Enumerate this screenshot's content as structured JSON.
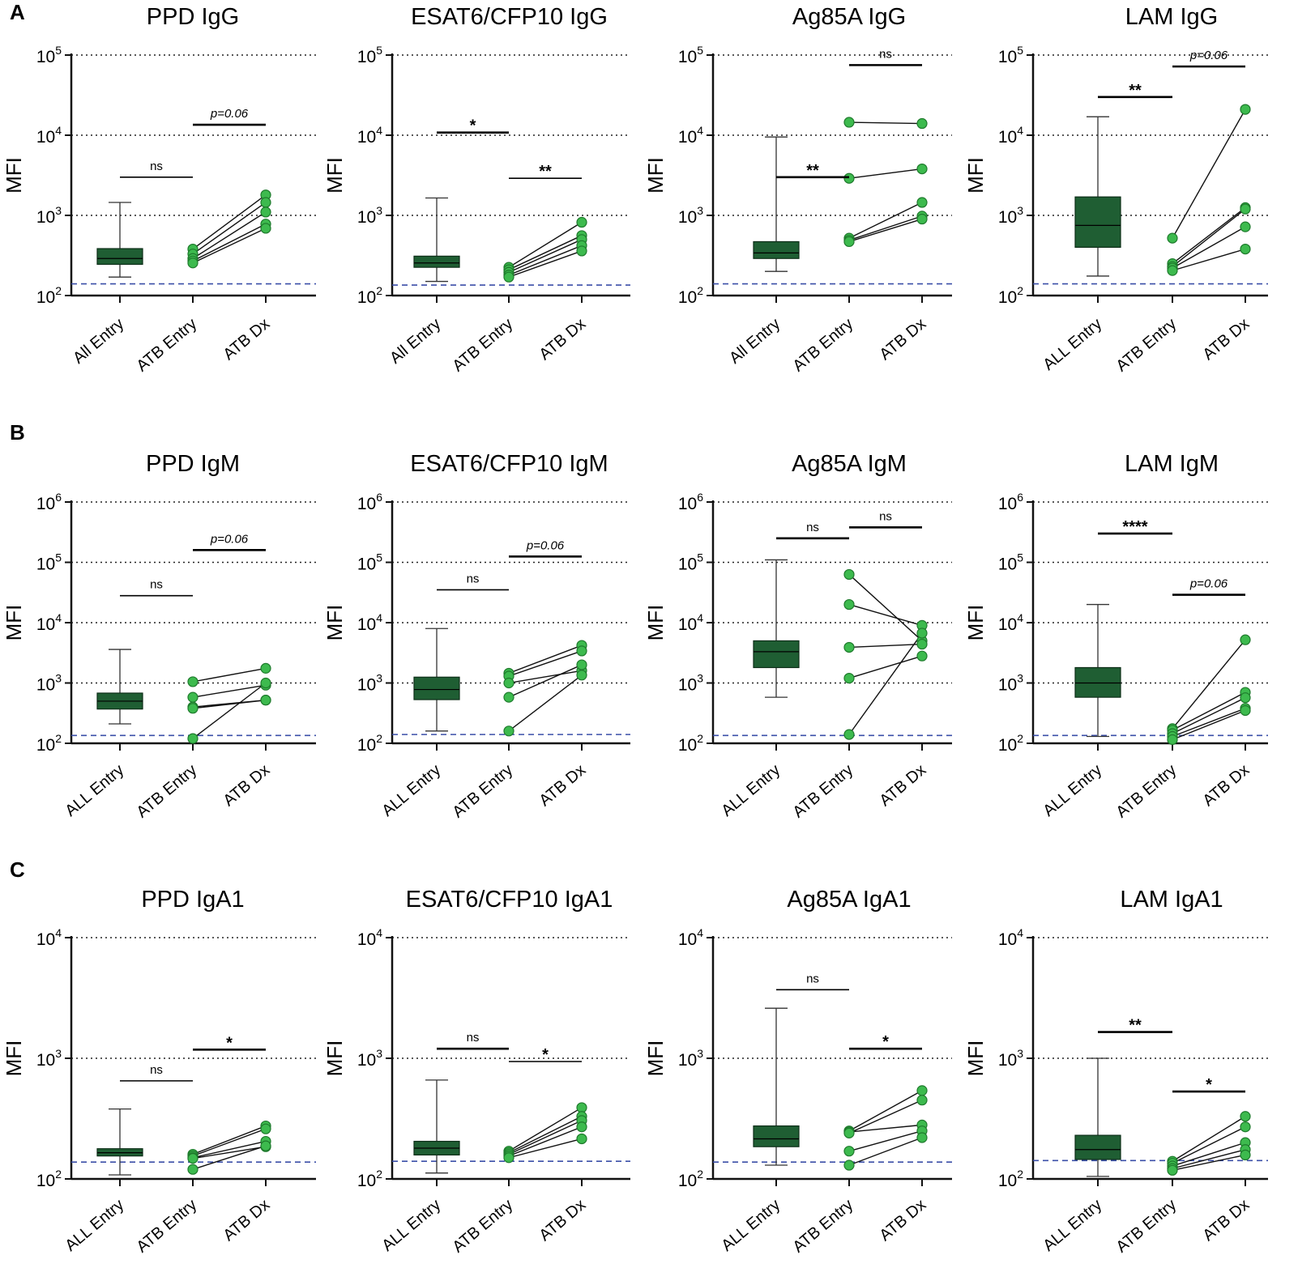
{
  "colors": {
    "box_fill": "#1f5e33",
    "point_fill": "#3dba4e",
    "point_stroke": "#1e7a2c",
    "threshold": "#3b4fa8",
    "axis": "#111111",
    "grid": "#222222"
  },
  "figure": {
    "panel_labels": [
      "A",
      "B",
      "C"
    ],
    "ylabel": "MFI"
  },
  "chart_data": [
    {
      "type": "box-paired",
      "panel": "A",
      "title": "PPD IgG",
      "ylabel": "MFI",
      "ylim_log10": [
        2,
        5
      ],
      "categories": [
        "All Entry",
        "ATB Entry",
        "ATB Dx"
      ],
      "box": {
        "min": 170,
        "q1": 245,
        "median": 290,
        "q3": 385,
        "max": 1450
      },
      "pairs": [
        [
          380,
          1800
        ],
        [
          330,
          1450
        ],
        [
          290,
          1100
        ],
        [
          270,
          780
        ],
        [
          255,
          690
        ]
      ],
      "threshold": 140,
      "comparisons": [
        {
          "label": "ns",
          "from": 0,
          "to": 1,
          "y": 3000,
          "bold": false,
          "italic": false
        },
        {
          "label": "p=0.06",
          "from": 1,
          "to": 2,
          "y": 13500,
          "bold": true,
          "italic": true
        }
      ]
    },
    {
      "type": "box-paired",
      "panel": "A",
      "title": "ESAT6/CFP10 IgG",
      "ylabel": "MFI",
      "ylim_log10": [
        2,
        5
      ],
      "categories": [
        "All Entry",
        "ATB Entry",
        "ATB Dx"
      ],
      "box": {
        "min": 150,
        "q1": 225,
        "median": 255,
        "q3": 310,
        "max": 1650
      },
      "pairs": [
        [
          225,
          820
        ],
        [
          210,
          560
        ],
        [
          195,
          500
        ],
        [
          180,
          420
        ],
        [
          170,
          360
        ]
      ],
      "threshold": 135,
      "comparisons": [
        {
          "label": "*",
          "from": 0,
          "to": 1,
          "y": 10800,
          "bold": true,
          "italic": false
        },
        {
          "label": "**",
          "from": 1,
          "to": 2,
          "y": 2900,
          "bold": false,
          "italic": false
        }
      ]
    },
    {
      "type": "box-paired",
      "panel": "A",
      "title": "Ag85A IgG",
      "ylabel": "MFI",
      "ylim_log10": [
        2,
        5
      ],
      "categories": [
        "All Entry",
        "ATB Entry",
        "ATB Dx"
      ],
      "box": {
        "min": 200,
        "q1": 290,
        "median": 340,
        "q3": 470,
        "max": 9500
      },
      "pairs": [
        [
          14500,
          14000
        ],
        [
          2900,
          3800
        ],
        [
          520,
          1450
        ],
        [
          490,
          980
        ],
        [
          470,
          900
        ]
      ],
      "threshold": 140,
      "comparisons": [
        {
          "label": "**",
          "from": 0,
          "to": 1,
          "y": 3000,
          "bold": true,
          "italic": false
        },
        {
          "label": "ns",
          "from": 1,
          "to": 2,
          "y": 75000,
          "bold": true,
          "italic": false
        }
      ]
    },
    {
      "type": "box-paired",
      "panel": "A",
      "title": "LAM IgG",
      "ylabel": "MFI",
      "ylim_log10": [
        2,
        5
      ],
      "categories": [
        "ALL Entry",
        "ATB Entry",
        "ATB Dx"
      ],
      "box": {
        "min": 175,
        "q1": 400,
        "median": 750,
        "q3": 1700,
        "max": 17000
      },
      "pairs": [
        [
          520,
          21000
        ],
        [
          250,
          1250
        ],
        [
          230,
          1200
        ],
        [
          220,
          720
        ],
        [
          205,
          380
        ]
      ],
      "threshold": 140,
      "comparisons": [
        {
          "label": "**",
          "from": 0,
          "to": 1,
          "y": 30000,
          "bold": true,
          "italic": false
        },
        {
          "label": "p=0.06",
          "from": 1,
          "to": 2,
          "y": 72000,
          "bold": true,
          "italic": true
        }
      ]
    },
    {
      "type": "box-paired",
      "panel": "B",
      "title": "PPD IgM",
      "ylabel": "MFI",
      "ylim_log10": [
        2,
        6
      ],
      "categories": [
        "ALL Entry",
        "ATB Entry",
        "ATB Dx"
      ],
      "box": {
        "min": 210,
        "q1": 370,
        "median": 500,
        "q3": 680,
        "max": 3600
      },
      "pairs": [
        [
          1050,
          1750
        ],
        [
          580,
          920
        ],
        [
          400,
          520
        ],
        [
          380,
          520
        ],
        [
          120,
          1000
        ]
      ],
      "threshold": 135,
      "comparisons": [
        {
          "label": "ns",
          "from": 0,
          "to": 1,
          "y": 28000,
          "bold": false,
          "italic": false
        },
        {
          "label": "p=0.06",
          "from": 1,
          "to": 2,
          "y": 160000,
          "bold": true,
          "italic": true
        }
      ]
    },
    {
      "type": "box-paired",
      "panel": "B",
      "title": "ESAT6/CFP10 IgM",
      "ylabel": "MFI",
      "ylim_log10": [
        2,
        6
      ],
      "categories": [
        "ALL Entry",
        "ATB Entry",
        "ATB Dx"
      ],
      "box": {
        "min": 160,
        "q1": 530,
        "median": 780,
        "q3": 1250,
        "max": 8000
      },
      "pairs": [
        [
          1450,
          4200
        ],
        [
          1300,
          3400
        ],
        [
          1000,
          1600
        ],
        [
          580,
          2000
        ],
        [
          160,
          1350
        ]
      ],
      "threshold": 140,
      "comparisons": [
        {
          "label": "ns",
          "from": 0,
          "to": 1,
          "y": 35000,
          "bold": false,
          "italic": false
        },
        {
          "label": "p=0.06",
          "from": 1,
          "to": 2,
          "y": 125000,
          "bold": true,
          "italic": true
        }
      ]
    },
    {
      "type": "box-paired",
      "panel": "B",
      "title": "Ag85A IgM",
      "ylabel": "MFI",
      "ylim_log10": [
        2,
        6
      ],
      "categories": [
        "ALL Entry",
        "ATB Entry",
        "ATB Dx"
      ],
      "box": {
        "min": 580,
        "q1": 1800,
        "median": 3300,
        "q3": 5000,
        "max": 110000
      },
      "pairs": [
        [
          63000,
          5000
        ],
        [
          20000,
          9000
        ],
        [
          3900,
          4400
        ],
        [
          1200,
          2800
        ],
        [
          140,
          6700
        ]
      ],
      "threshold": 135,
      "comparisons": [
        {
          "label": "ns",
          "from": 0,
          "to": 1,
          "y": 250000,
          "bold": true,
          "italic": false
        },
        {
          "label": "ns",
          "from": 1,
          "to": 2,
          "y": 380000,
          "bold": true,
          "italic": false
        }
      ]
    },
    {
      "type": "box-paired",
      "panel": "B",
      "title": "LAM IgM",
      "ylabel": "MFI",
      "ylim_log10": [
        2,
        6
      ],
      "categories": [
        "ALL Entry",
        "ATB Entry",
        "ATB Dx"
      ],
      "box": {
        "min": 130,
        "q1": 580,
        "median": 1000,
        "q3": 1800,
        "max": 20000
      },
      "pairs": [
        [
          175,
          5200
        ],
        [
          165,
          700
        ],
        [
          145,
          570
        ],
        [
          130,
          380
        ],
        [
          115,
          350
        ]
      ],
      "threshold": 135,
      "comparisons": [
        {
          "label": "****",
          "from": 0,
          "to": 1,
          "y": 300000,
          "bold": true,
          "italic": false
        },
        {
          "label": "p=0.06",
          "from": 1,
          "to": 2,
          "y": 29000,
          "bold": true,
          "italic": true
        }
      ]
    },
    {
      "type": "box-paired",
      "panel": "C",
      "title": "PPD IgA1",
      "ylabel": "MFI",
      "ylim_log10": [
        2,
        4
      ],
      "categories": [
        "ALL Entry",
        "ATB Entry",
        "ATB Dx"
      ],
      "box": {
        "min": 108,
        "q1": 155,
        "median": 165,
        "q3": 178,
        "max": 380
      },
      "pairs": [
        [
          160,
          275
        ],
        [
          155,
          260
        ],
        [
          150,
          205
        ],
        [
          148,
          185
        ],
        [
          120,
          188
        ]
      ],
      "threshold": 138,
      "comparisons": [
        {
          "label": "ns",
          "from": 0,
          "to": 1,
          "y": 650,
          "bold": false,
          "italic": false
        },
        {
          "label": "*",
          "from": 1,
          "to": 2,
          "y": 1180,
          "bold": true,
          "italic": false
        }
      ]
    },
    {
      "type": "box-paired",
      "panel": "C",
      "title": "ESAT6/CFP10 IgA1",
      "ylabel": "MFI",
      "ylim_log10": [
        2,
        4
      ],
      "categories": [
        "ALL Entry",
        "ATB Entry",
        "ATB Dx"
      ],
      "box": {
        "min": 112,
        "q1": 158,
        "median": 180,
        "q3": 205,
        "max": 660
      },
      "pairs": [
        [
          170,
          390
        ],
        [
          165,
          330
        ],
        [
          160,
          305
        ],
        [
          155,
          270
        ],
        [
          150,
          215
        ]
      ],
      "threshold": 140,
      "comparisons": [
        {
          "label": "ns",
          "from": 0,
          "to": 1,
          "y": 1200,
          "bold": true,
          "italic": false
        },
        {
          "label": "*",
          "from": 1,
          "to": 2,
          "y": 940,
          "bold": false,
          "italic": false
        }
      ]
    },
    {
      "type": "box-paired",
      "panel": "C",
      "title": "Ag85A IgA1",
      "ylabel": "MFI",
      "ylim_log10": [
        2,
        4
      ],
      "categories": [
        "ALL Entry",
        "ATB Entry",
        "ATB Dx"
      ],
      "box": {
        "min": 130,
        "q1": 185,
        "median": 215,
        "q3": 275,
        "max": 2600
      },
      "pairs": [
        [
          250,
          540
        ],
        [
          245,
          280
        ],
        [
          240,
          450
        ],
        [
          170,
          250
        ],
        [
          130,
          220
        ]
      ],
      "threshold": 138,
      "comparisons": [
        {
          "label": "ns",
          "from": 0,
          "to": 1,
          "y": 3700,
          "bold": false,
          "italic": false
        },
        {
          "label": "*",
          "from": 1,
          "to": 2,
          "y": 1200,
          "bold": true,
          "italic": false
        }
      ]
    },
    {
      "type": "box-paired",
      "panel": "C",
      "title": "LAM IgA1",
      "ylabel": "MFI",
      "ylim_log10": [
        2,
        4
      ],
      "categories": [
        "ALL Entry",
        "ATB Entry",
        "ATB Dx"
      ],
      "box": {
        "min": 105,
        "q1": 145,
        "median": 175,
        "q3": 230,
        "max": 1000
      },
      "pairs": [
        [
          140,
          330
        ],
        [
          135,
          270
        ],
        [
          128,
          200
        ],
        [
          122,
          175
        ],
        [
          118,
          158
        ]
      ],
      "threshold": 142,
      "comparisons": [
        {
          "label": "**",
          "from": 0,
          "to": 1,
          "y": 1650,
          "bold": true,
          "italic": false
        },
        {
          "label": "*",
          "from": 1,
          "to": 2,
          "y": 530,
          "bold": true,
          "italic": false
        }
      ]
    }
  ]
}
